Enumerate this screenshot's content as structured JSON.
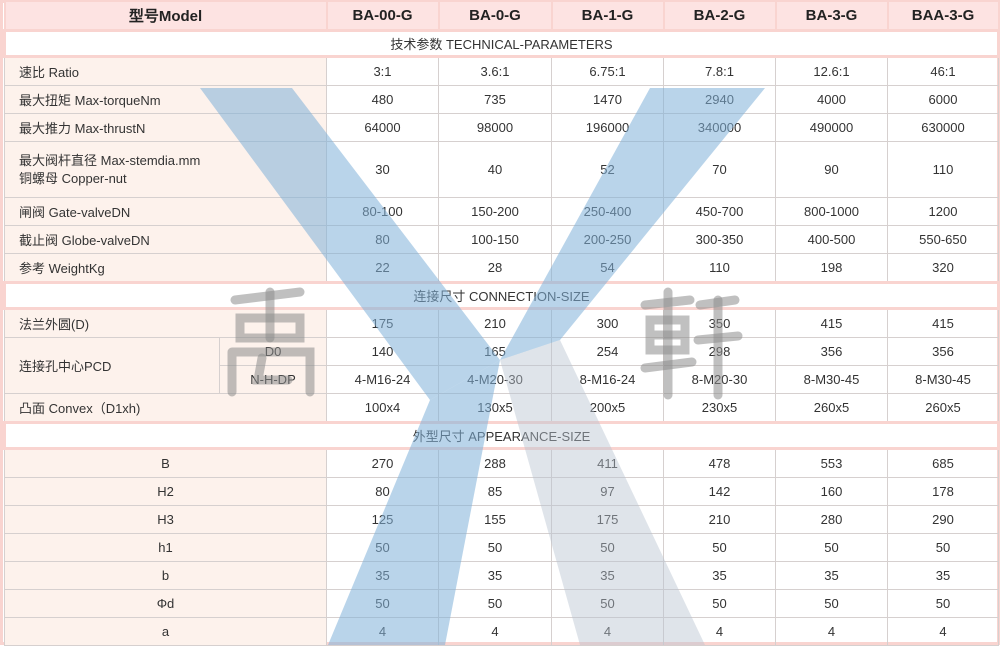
{
  "header": {
    "model_label": "型号Model",
    "models": [
      "BA-00-G",
      "BA-0-G",
      "BA-1-G",
      "BA-2-G",
      "BA-3-G",
      "BAA-3-G"
    ]
  },
  "sections": {
    "technical": "技术参数 TECHNICAL-PARAMETERS",
    "connection": "连接尺寸 CONNECTION-SIZE",
    "appearance": "外型尺寸 APPEARANCE-SIZE"
  },
  "technical_rows": [
    {
      "label": "速比 Ratio",
      "values": [
        "3:1",
        "3.6:1",
        "6.75:1",
        "7.8:1",
        "12.6:1",
        "46:1"
      ]
    },
    {
      "label": "最大扭矩 Max-torqueNm",
      "values": [
        "480",
        "735",
        "1470",
        "2940",
        "4000",
        "6000"
      ]
    },
    {
      "label": "最大推力 Max-thrustN",
      "values": [
        "64000",
        "98000",
        "196000",
        "340000",
        "490000",
        "630000"
      ]
    },
    {
      "label": "最大阀杆直径 Max-stemdia.mm",
      "label2": "铜螺母 Copper-nut",
      "values": [
        "30",
        "40",
        "52",
        "70",
        "90",
        "110"
      ]
    },
    {
      "label": "闸阀 Gate-valveDN",
      "values": [
        "80-100",
        "150-200",
        "250-400",
        "450-700",
        "800-1000",
        "1200"
      ]
    },
    {
      "label": "截止阀 Globe-valveDN",
      "values": [
        "80",
        "100-150",
        "200-250",
        "300-350",
        "400-500",
        "550-650"
      ]
    },
    {
      "label": "参考 WeightKg",
      "values": [
        "22",
        "28",
        "54",
        "110",
        "198",
        "320"
      ]
    }
  ],
  "connection_rows": {
    "flange": {
      "label": "法兰外圆(D)",
      "values": [
        "175",
        "210",
        "300",
        "350",
        "415",
        "415"
      ]
    },
    "pcd": {
      "label": "连接孔中心PCD",
      "d0": {
        "label": "D0",
        "values": [
          "140",
          "165",
          "254",
          "298",
          "356",
          "356"
        ]
      },
      "nhdp": {
        "label": "N-H-DP",
        "values": [
          "4-M16-24",
          "4-M20-30",
          "8-M16-24",
          "8-M20-30",
          "8-M30-45",
          "8-M30-45"
        ]
      }
    },
    "convex": {
      "label": "凸面 Convex（D1xh)",
      "values": [
        "100x4",
        "130x5",
        "200x5",
        "230x5",
        "260x5",
        "260x5"
      ]
    }
  },
  "appearance_rows": [
    {
      "label": "B",
      "values": [
        "270",
        "288",
        "411",
        "478",
        "553",
        "685"
      ]
    },
    {
      "label": "H2",
      "values": [
        "80",
        "85",
        "97",
        "142",
        "160",
        "178"
      ]
    },
    {
      "label": "H3",
      "values": [
        "125",
        "155",
        "175",
        "210",
        "280",
        "290"
      ]
    },
    {
      "label": "h1",
      "values": [
        "50",
        "50",
        "50",
        "50",
        "50",
        "50"
      ]
    },
    {
      "label": "b",
      "values": [
        "35",
        "35",
        "35",
        "35",
        "35",
        "35"
      ]
    },
    {
      "label": "Φd",
      "values": [
        "50",
        "50",
        "50",
        "50",
        "50",
        "50"
      ]
    },
    {
      "label": "a",
      "values": [
        "4",
        "4",
        "4",
        "4",
        "4",
        "4"
      ]
    }
  ],
  "watermark": {
    "chars": [
      "禹",
      "軒"
    ],
    "color": "#7fb0d9"
  }
}
